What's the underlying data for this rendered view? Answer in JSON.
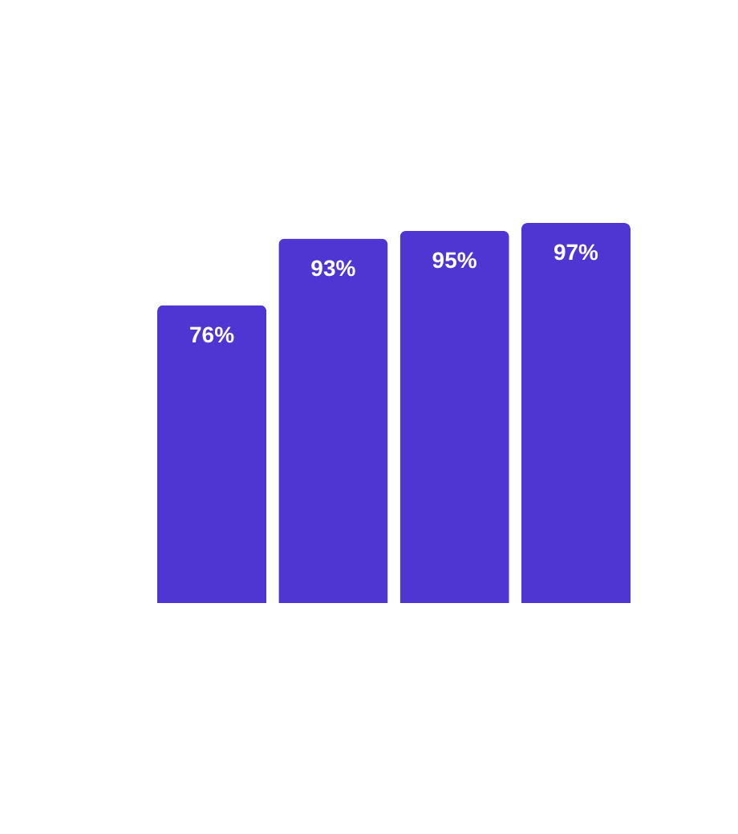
{
  "chart_data": {
    "type": "bar",
    "categories": [
      null,
      null,
      null,
      null
    ],
    "values": [
      76,
      93,
      95,
      97
    ],
    "value_labels": [
      "76%",
      "93%",
      "95%",
      "97%"
    ],
    "color": "#4f35d2"
  }
}
